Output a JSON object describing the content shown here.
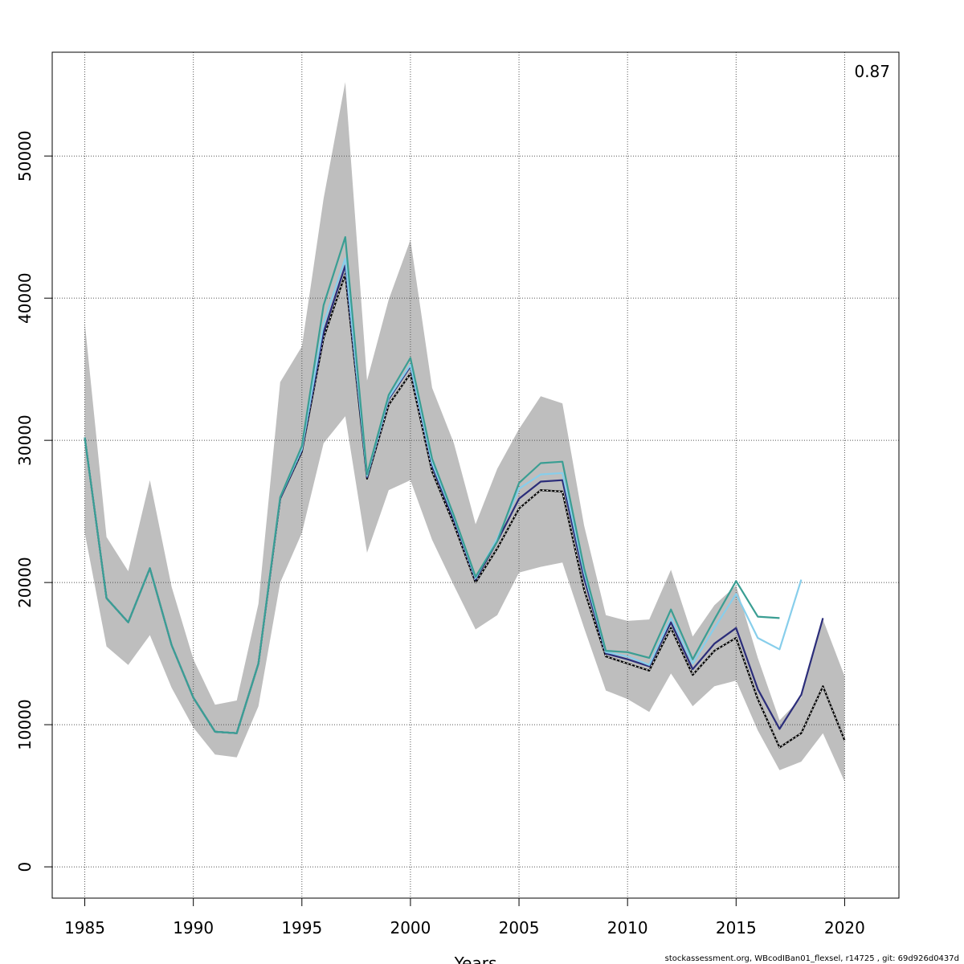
{
  "chart_data": {
    "type": "line",
    "title": "",
    "xlabel": "Years",
    "ylabel": "",
    "corner_label": "0.87",
    "xlim": [
      1983.5,
      2022.5
    ],
    "ylim": [
      -2200,
      57300
    ],
    "x_ticks": [
      1985,
      1990,
      1995,
      2000,
      2005,
      2010,
      2015,
      2020
    ],
    "y_ticks": [
      0,
      10000,
      20000,
      30000,
      40000,
      50000
    ],
    "grid": true,
    "band": {
      "x": [
        1985,
        1986,
        1987,
        1988,
        1989,
        1990,
        1991,
        1992,
        1993,
        1994,
        1995,
        1996,
        1997,
        1998,
        1999,
        2000,
        2001,
        2002,
        2003,
        2004,
        2005,
        2006,
        2007,
        2008,
        2009,
        2010,
        2011,
        2012,
        2013,
        2014,
        2015,
        2016,
        2017,
        2018,
        2019,
        2020
      ],
      "lower": [
        23500,
        15500,
        14200,
        16300,
        12600,
        9800,
        7900,
        7700,
        11300,
        20000,
        23500,
        29800,
        31700,
        22100,
        26500,
        27200,
        23000,
        19800,
        16700,
        17700,
        20700,
        21100,
        21400,
        16800,
        12400,
        11800,
        10900,
        13600,
        11300,
        12700,
        13100,
        9600,
        6800,
        7400,
        9400,
        6000
      ],
      "upper": [
        38300,
        23200,
        20800,
        27200,
        19700,
        14600,
        11400,
        11700,
        18500,
        34100,
        36600,
        47000,
        55200,
        34200,
        39900,
        44100,
        33700,
        29800,
        24100,
        28000,
        30800,
        33100,
        32600,
        24000,
        17700,
        17300,
        17400,
        20900,
        16200,
        18400,
        19800,
        14700,
        10300,
        11900,
        17400,
        13400
      ],
      "color": "#bebebe"
    },
    "series": [
      {
        "color": "#000000",
        "dashed_overlay": true,
        "x": [
          1985,
          1986,
          1987,
          1988,
          1989,
          1990,
          1991,
          1992,
          1993,
          1994,
          1995,
          1996,
          1997,
          1998,
          1999,
          2000,
          2001,
          2002,
          2003,
          2004,
          2005,
          2006,
          2007,
          2008,
          2009,
          2010,
          2011,
          2012,
          2013,
          2014,
          2015,
          2016,
          2017,
          2018,
          2019,
          2020
        ],
        "values": [
          30200,
          18900,
          17200,
          21000,
          15600,
          11900,
          9500,
          9400,
          14300,
          25900,
          29200,
          37200,
          41700,
          27300,
          32500,
          34700,
          27800,
          24100,
          20000,
          22400,
          25200,
          26500,
          26400,
          19500,
          14800,
          14300,
          13800,
          16800,
          13500,
          15200,
          16100,
          11800,
          8400,
          9400,
          12700,
          8900
        ]
      },
      {
        "color": "#2b2d7a",
        "x": [
          1985,
          1986,
          1987,
          1988,
          1989,
          1990,
          1991,
          1992,
          1993,
          1994,
          1995,
          1996,
          1997,
          1998,
          1999,
          2000,
          2001,
          2002,
          2003,
          2004,
          2005,
          2006,
          2007,
          2008,
          2009,
          2010,
          2011,
          2012,
          2013,
          2014,
          2015,
          2016,
          2017,
          2018,
          2019
        ],
        "values": [
          30200,
          18900,
          17200,
          21000,
          15600,
          11900,
          9500,
          9400,
          14300,
          25900,
          29300,
          37600,
          42300,
          27400,
          32900,
          35200,
          28200,
          24400,
          20200,
          22900,
          25900,
          27100,
          27200,
          20300,
          15000,
          14600,
          14100,
          17200,
          13900,
          15700,
          16800,
          12500,
          9700,
          12100,
          17500
        ]
      },
      {
        "color": "#87ceeb",
        "x": [
          1985,
          1986,
          1987,
          1988,
          1989,
          1990,
          1991,
          1992,
          1993,
          1994,
          1995,
          1996,
          1997,
          1998,
          1999,
          2000,
          2001,
          2002,
          2003,
          2004,
          2005,
          2006,
          2007,
          2008,
          2009,
          2010,
          2011,
          2012,
          2013,
          2014,
          2015,
          2016,
          2017,
          2018
        ],
        "values": [
          30200,
          18900,
          17200,
          21000,
          15600,
          11900,
          9500,
          9400,
          14300,
          26000,
          29400,
          38200,
          42800,
          27500,
          33000,
          35300,
          28400,
          24600,
          20300,
          23100,
          26600,
          27600,
          27700,
          20700,
          15100,
          14800,
          14200,
          17500,
          14300,
          16800,
          19200,
          16100,
          15300,
          20200
        ]
      },
      {
        "color": "#3a9e93",
        "x": [
          1985,
          1986,
          1987,
          1988,
          1989,
          1990,
          1991,
          1992,
          1993,
          1994,
          1995,
          1996,
          1997,
          1998,
          1999,
          2000,
          2001,
          2002,
          2003,
          2004,
          2005,
          2006,
          2007,
          2008,
          2009,
          2010,
          2011,
          2012,
          2013,
          2014,
          2015,
          2016,
          2017
        ],
        "values": [
          30200,
          18900,
          17200,
          21000,
          15600,
          11900,
          9500,
          9400,
          14300,
          26000,
          29600,
          39500,
          44300,
          27600,
          33200,
          35800,
          28700,
          24700,
          20400,
          22900,
          27000,
          28400,
          28500,
          21000,
          15200,
          15100,
          14700,
          18100,
          14600,
          17400,
          20100,
          17600,
          17500
        ]
      }
    ]
  },
  "footer": "stockassessment.org, WBcodIBan01_flexsel, r14725 , git: 69d926d0437d"
}
